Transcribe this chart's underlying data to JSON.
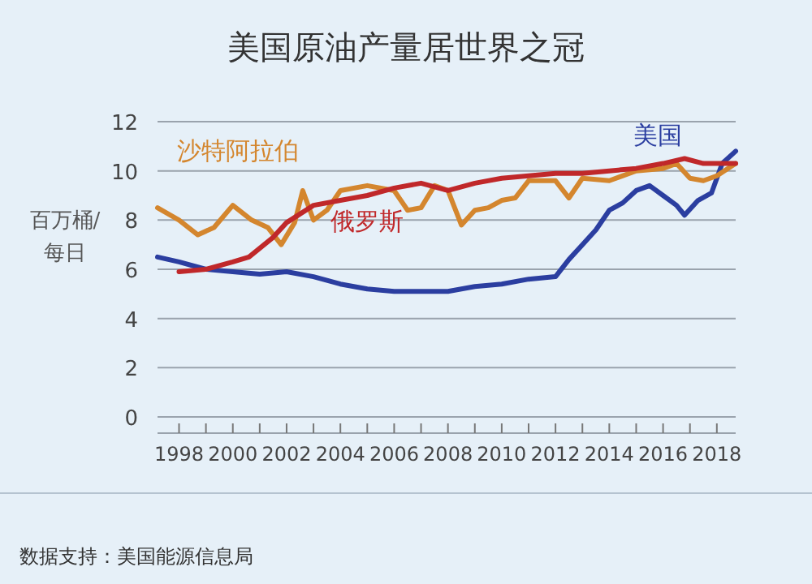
{
  "chart_data": {
    "type": "line",
    "title": "美国原油产量居世界之冠",
    "ylabel": "百万桶/每日",
    "annotations": [
      "数据支持：美国能源信息局"
    ],
    "xlim": [
      1997.2,
      2018.7
    ],
    "ylim": [
      0,
      12
    ],
    "xticks": [
      1998,
      {
        "value": 1999,
        "label": null
      },
      2000,
      {
        "value": 2001,
        "label": null
      },
      2002,
      {
        "value": 2003,
        "label": null
      },
      2004,
      {
        "value": 2005,
        "label": null
      },
      2006,
      {
        "value": 2007,
        "label": null
      },
      2008,
      {
        "value": 2009,
        "label": null
      },
      2010,
      {
        "value": 2011,
        "label": null
      },
      2012,
      {
        "value": 2013,
        "label": null
      },
      2014,
      {
        "value": 2015,
        "label": null
      },
      2016,
      {
        "value": 2017,
        "label": null
      },
      2018
    ],
    "yticks": [
      0,
      2,
      4,
      6,
      8,
      10,
      12
    ],
    "grid": "y",
    "series": [
      {
        "name": "美国",
        "color": "#2b3ea0",
        "x": [
          1997.2,
          1998,
          1999,
          2000,
          2001,
          2002,
          2003,
          2004,
          2005,
          2006,
          2007,
          2008,
          2009,
          2010,
          2011,
          2012,
          2012.5,
          2013,
          2013.5,
          2014,
          2014.5,
          2015,
          2015.5,
          2016,
          2016.5,
          2016.8,
          2017.3,
          2017.8,
          2018.2,
          2018.7
        ],
        "values": [
          6.5,
          6.3,
          6.0,
          5.9,
          5.8,
          5.9,
          5.7,
          5.4,
          5.2,
          5.1,
          5.1,
          5.1,
          5.3,
          5.4,
          5.6,
          5.7,
          6.4,
          7.0,
          7.6,
          8.4,
          8.7,
          9.2,
          9.4,
          9.0,
          8.6,
          8.2,
          8.8,
          9.1,
          10.3,
          10.8
        ]
      },
      {
        "name": "沙特阿拉伯",
        "color": "#d4862e",
        "x": [
          1997.2,
          1998,
          1998.7,
          1999.3,
          2000,
          2000.7,
          2001.3,
          2001.8,
          2002.3,
          2002.6,
          2003,
          2003.5,
          2004,
          2005,
          2006,
          2006.5,
          2007,
          2007.5,
          2008,
          2008.5,
          2009,
          2009.5,
          2010,
          2010.5,
          2011,
          2012,
          2012.5,
          2013,
          2014,
          2015,
          2016,
          2016.5,
          2017,
          2017.5,
          2018,
          2018.7
        ],
        "values": [
          8.5,
          8.0,
          7.4,
          7.7,
          8.6,
          8.0,
          7.7,
          7.0,
          7.9,
          9.2,
          8.0,
          8.4,
          9.2,
          9.4,
          9.2,
          8.4,
          8.5,
          9.4,
          9.2,
          7.8,
          8.4,
          8.5,
          8.8,
          8.9,
          9.6,
          9.6,
          8.9,
          9.7,
          9.6,
          10.0,
          10.1,
          10.3,
          9.7,
          9.6,
          9.8,
          10.3
        ]
      },
      {
        "name": "俄罗斯",
        "color": "#c0282a",
        "x": [
          1998,
          1999,
          2000,
          2000.6,
          2001.5,
          2002,
          2003,
          2004,
          2005,
          2006,
          2007,
          2008,
          2009,
          2010,
          2011,
          2012,
          2013,
          2014,
          2015,
          2016,
          2016.8,
          2017.5,
          2018.7
        ],
        "values": [
          5.9,
          6.0,
          6.3,
          6.5,
          7.3,
          7.9,
          8.6,
          8.8,
          9.0,
          9.3,
          9.5,
          9.2,
          9.5,
          9.7,
          9.8,
          9.9,
          9.9,
          10.0,
          10.1,
          10.3,
          10.5,
          10.3,
          10.3
        ]
      }
    ]
  }
}
